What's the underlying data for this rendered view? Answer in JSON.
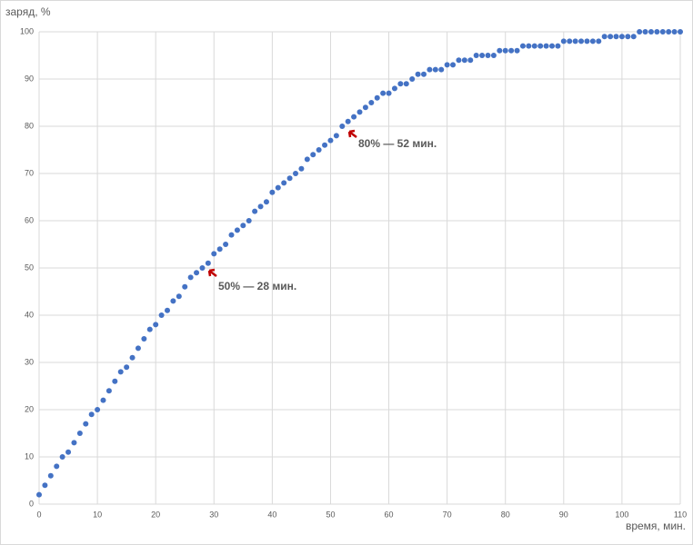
{
  "chart_data": {
    "type": "scatter",
    "y_label": "заряд, %",
    "x_label": "время, мин.",
    "annotations": [
      "80% — 52 мин.",
      "50% — 28 мин."
    ],
    "xlim": [
      0,
      110
    ],
    "xticks": [
      0,
      10,
      20,
      30,
      40,
      50,
      60,
      70,
      80,
      90,
      100,
      110
    ],
    "ylim": [
      0,
      100
    ],
    "yticks": [
      0,
      10,
      20,
      30,
      40,
      50,
      60,
      70,
      80,
      90,
      100
    ],
    "grid": true,
    "color": "#4472c4",
    "x": [
      0,
      1,
      2,
      3,
      4,
      5,
      6,
      7,
      8,
      9,
      10,
      11,
      12,
      13,
      14,
      15,
      16,
      17,
      18,
      19,
      20,
      21,
      22,
      23,
      24,
      25,
      26,
      27,
      28,
      29,
      30,
      31,
      32,
      33,
      34,
      35,
      36,
      37,
      38,
      39,
      40,
      41,
      42,
      43,
      44,
      45,
      46,
      47,
      48,
      49,
      50,
      51,
      52,
      53,
      54,
      55,
      56,
      57,
      58,
      59,
      60,
      61,
      62,
      63,
      64,
      65,
      66,
      67,
      68,
      69,
      70,
      71,
      72,
      73,
      74,
      75,
      76,
      77,
      78,
      79,
      80,
      81,
      82,
      83,
      84,
      85,
      86,
      87,
      88,
      89,
      90,
      91,
      92,
      93,
      94,
      95,
      96,
      97,
      98,
      99,
      100,
      101,
      102,
      103,
      104,
      105,
      106,
      107,
      108,
      109,
      110
    ],
    "values": [
      2,
      4,
      6,
      8,
      10,
      11,
      13,
      15,
      17,
      19,
      20,
      22,
      24,
      26,
      28,
      29,
      31,
      33,
      35,
      37,
      38,
      40,
      41,
      43,
      44,
      46,
      48,
      49,
      50,
      51,
      53,
      54,
      55,
      57,
      58,
      59,
      60,
      62,
      63,
      64,
      66,
      67,
      68,
      69,
      70,
      71,
      73,
      74,
      75,
      76,
      77,
      78,
      80,
      81,
      82,
      83,
      84,
      85,
      86,
      87,
      87,
      88,
      89,
      89,
      90,
      91,
      91,
      92,
      92,
      92,
      93,
      93,
      94,
      94,
      94,
      95,
      95,
      95,
      95,
      96,
      96,
      96,
      96,
      97,
      97,
      97,
      97,
      97,
      97,
      97,
      98,
      98,
      98,
      98,
      98,
      98,
      98,
      99,
      99,
      99,
      99,
      99,
      99,
      100,
      100,
      100,
      100,
      100,
      100,
      100,
      100
    ]
  }
}
